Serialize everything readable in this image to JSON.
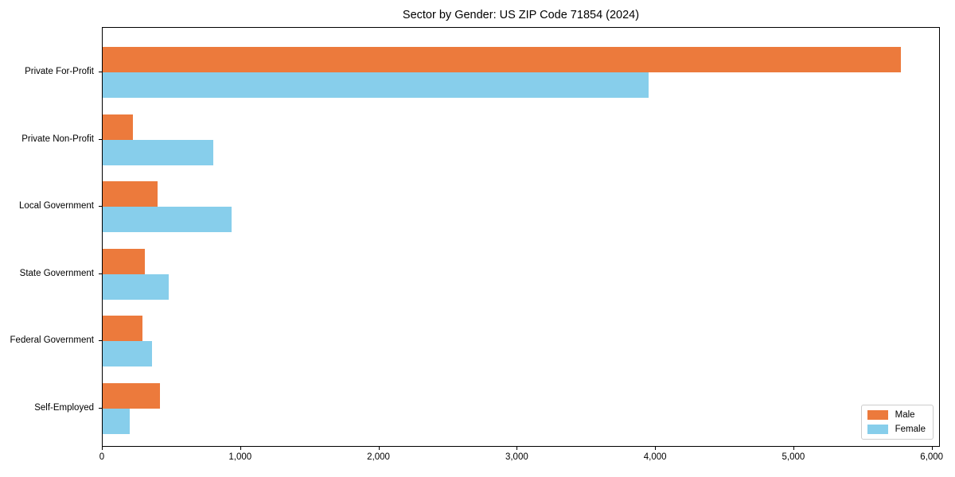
{
  "title": "Sector by Gender: US ZIP Code 71854 (2024)",
  "chart_data": {
    "type": "bar",
    "orientation": "horizontal",
    "title": "Sector by Gender: US ZIP Code 71854 (2024)",
    "xlabel": "",
    "ylabel": "",
    "categories": [
      "Private For-Profit",
      "Private Non-Profit",
      "Local Government",
      "State Government",
      "Federal Government",
      "Self-Employed"
    ],
    "series": [
      {
        "name": "Male",
        "color": "#ec7a3c",
        "values": [
          5770,
          220,
          395,
          305,
          290,
          415
        ]
      },
      {
        "name": "Female",
        "color": "#87ceeb",
        "values": [
          3950,
          800,
          930,
          480,
          355,
          195
        ]
      }
    ],
    "xlim": [
      0,
      6000
    ],
    "xticks": [
      0,
      1000,
      2000,
      3000,
      4000,
      5000,
      6000
    ],
    "xtick_labels": [
      "0",
      "1,000",
      "2,000",
      "3,000",
      "4,000",
      "5,000",
      "6,000"
    ],
    "grid": false,
    "legend": {
      "position": "lower right",
      "entries": [
        "Male",
        "Female"
      ]
    }
  }
}
